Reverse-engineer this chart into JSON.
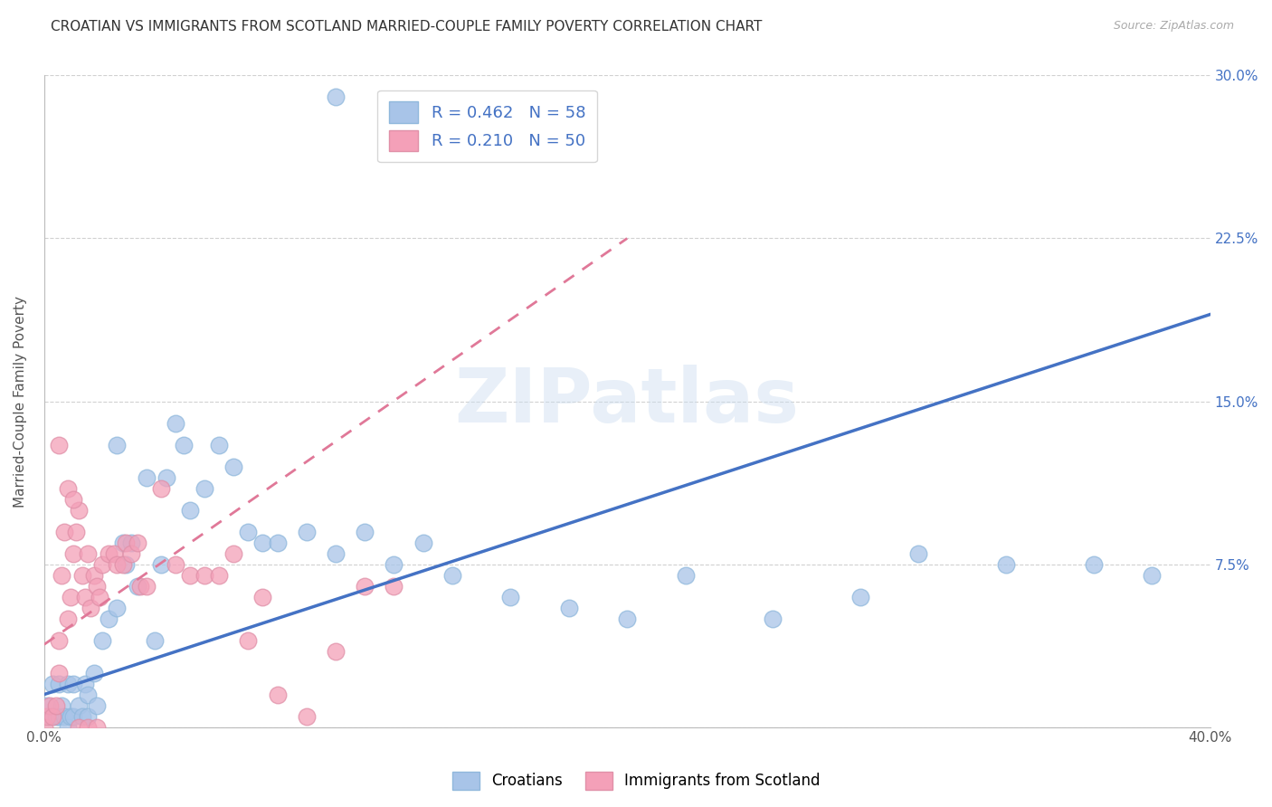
{
  "title": "CROATIAN VS IMMIGRANTS FROM SCOTLAND MARRIED-COUPLE FAMILY POVERTY CORRELATION CHART",
  "source": "Source: ZipAtlas.com",
  "ylabel": "Married-Couple Family Poverty",
  "watermark": "ZIPatlas",
  "xlim": [
    0.0,
    0.4
  ],
  "ylim": [
    0.0,
    0.3
  ],
  "xticks": [
    0.0,
    0.1,
    0.2,
    0.3,
    0.4
  ],
  "xtick_labels": [
    "0.0%",
    "",
    "",
    "",
    "40.0%"
  ],
  "yticks": [
    0.0,
    0.075,
    0.15,
    0.225,
    0.3
  ],
  "ytick_labels_right": [
    "",
    "7.5%",
    "15.0%",
    "22.5%",
    "30.0%"
  ],
  "croatian_R": 0.462,
  "croatian_N": 58,
  "scotland_R": 0.21,
  "scotland_N": 50,
  "croatian_color": "#a8c4e8",
  "scotland_color": "#f4a0b8",
  "croatian_line_color": "#4472c4",
  "scotland_line_color": "#e07898",
  "croatian_line_x": [
    0.0,
    0.4
  ],
  "croatian_line_y": [
    0.015,
    0.19
  ],
  "scotland_line_x": [
    0.0,
    0.2
  ],
  "scotland_line_y": [
    0.038,
    0.225
  ],
  "background_color": "#ffffff",
  "grid_color": "#cccccc",
  "title_fontsize": 11,
  "axis_label_fontsize": 11,
  "tick_fontsize": 11,
  "legend_fontsize": 13,
  "croatian_points_x": [
    0.001,
    0.002,
    0.003,
    0.004,
    0.005,
    0.005,
    0.006,
    0.007,
    0.008,
    0.008,
    0.009,
    0.01,
    0.01,
    0.012,
    0.013,
    0.014,
    0.015,
    0.015,
    0.017,
    0.018,
    0.02,
    0.022,
    0.025,
    0.025,
    0.027,
    0.028,
    0.03,
    0.032,
    0.035,
    0.038,
    0.04,
    0.042,
    0.045,
    0.048,
    0.05,
    0.055,
    0.06,
    0.065,
    0.07,
    0.075,
    0.08,
    0.09,
    0.1,
    0.11,
    0.12,
    0.13,
    0.14,
    0.16,
    0.18,
    0.2,
    0.22,
    0.25,
    0.28,
    0.3,
    0.33,
    0.36,
    0.38,
    0.1
  ],
  "croatian_points_y": [
    0.01,
    0.005,
    0.02,
    0.005,
    0.02,
    0.005,
    0.01,
    0.005,
    0.02,
    0.0,
    0.005,
    0.02,
    0.005,
    0.01,
    0.005,
    0.02,
    0.015,
    0.005,
    0.025,
    0.01,
    0.04,
    0.05,
    0.055,
    0.13,
    0.085,
    0.075,
    0.085,
    0.065,
    0.115,
    0.04,
    0.075,
    0.115,
    0.14,
    0.13,
    0.1,
    0.11,
    0.13,
    0.12,
    0.09,
    0.085,
    0.085,
    0.09,
    0.08,
    0.09,
    0.075,
    0.085,
    0.07,
    0.06,
    0.055,
    0.05,
    0.07,
    0.05,
    0.06,
    0.08,
    0.075,
    0.075,
    0.07,
    0.29
  ],
  "scotland_points_x": [
    0.0,
    0.001,
    0.002,
    0.003,
    0.004,
    0.005,
    0.005,
    0.006,
    0.007,
    0.008,
    0.009,
    0.01,
    0.011,
    0.012,
    0.013,
    0.014,
    0.015,
    0.016,
    0.017,
    0.018,
    0.019,
    0.02,
    0.022,
    0.024,
    0.025,
    0.027,
    0.028,
    0.03,
    0.032,
    0.033,
    0.035,
    0.04,
    0.045,
    0.05,
    0.055,
    0.06,
    0.065,
    0.07,
    0.075,
    0.08,
    0.09,
    0.1,
    0.11,
    0.12,
    0.005,
    0.008,
    0.01,
    0.012,
    0.015,
    0.018
  ],
  "scotland_points_y": [
    0.0,
    0.005,
    0.01,
    0.005,
    0.01,
    0.04,
    0.025,
    0.07,
    0.09,
    0.05,
    0.06,
    0.08,
    0.09,
    0.1,
    0.07,
    0.06,
    0.08,
    0.055,
    0.07,
    0.065,
    0.06,
    0.075,
    0.08,
    0.08,
    0.075,
    0.075,
    0.085,
    0.08,
    0.085,
    0.065,
    0.065,
    0.11,
    0.075,
    0.07,
    0.07,
    0.07,
    0.08,
    0.04,
    0.06,
    0.015,
    0.005,
    0.035,
    0.065,
    0.065,
    0.13,
    0.11,
    0.105,
    0.0,
    0.0,
    0.0
  ]
}
